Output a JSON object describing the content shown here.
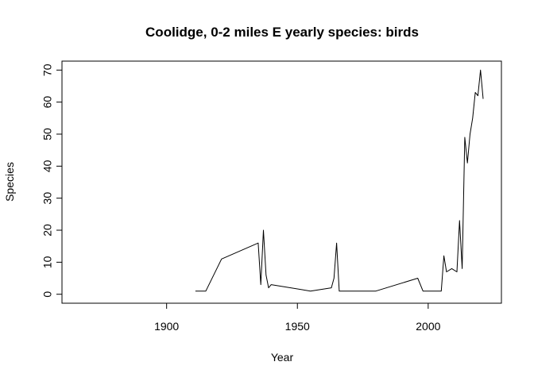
{
  "chart_data": {
    "type": "line",
    "title": "Coolidge, 0-2 miles E yearly species: birds",
    "xlabel": "Year",
    "ylabel": "Species",
    "xlim": [
      1860,
      2028
    ],
    "ylim": [
      -2.8,
      72.8
    ],
    "x_ticks": [
      1900,
      1950,
      2000
    ],
    "y_ticks": [
      0,
      10,
      20,
      30,
      40,
      50,
      60,
      70
    ],
    "grid": false,
    "legend": "none",
    "line_color": "#000000",
    "series": [
      {
        "x": [
          1911,
          1915,
          1921,
          1935,
          1936,
          1937,
          1938,
          1939,
          1940,
          1955,
          1963,
          1964,
          1965,
          1966,
          1980,
          1996,
          1998,
          2005,
          2006,
          2007,
          2009,
          2011,
          2012,
          2013,
          2014,
          2015,
          2016,
          2017,
          2018,
          2019,
          2020,
          2021
        ],
        "y": [
          1,
          1,
          11,
          16,
          3,
          20,
          6,
          2,
          3,
          1,
          2,
          5,
          16,
          1,
          1,
          5,
          1,
          1,
          12,
          7,
          8,
          7,
          23,
          8,
          49,
          41,
          50,
          55,
          63,
          62,
          70,
          61
        ]
      }
    ]
  }
}
